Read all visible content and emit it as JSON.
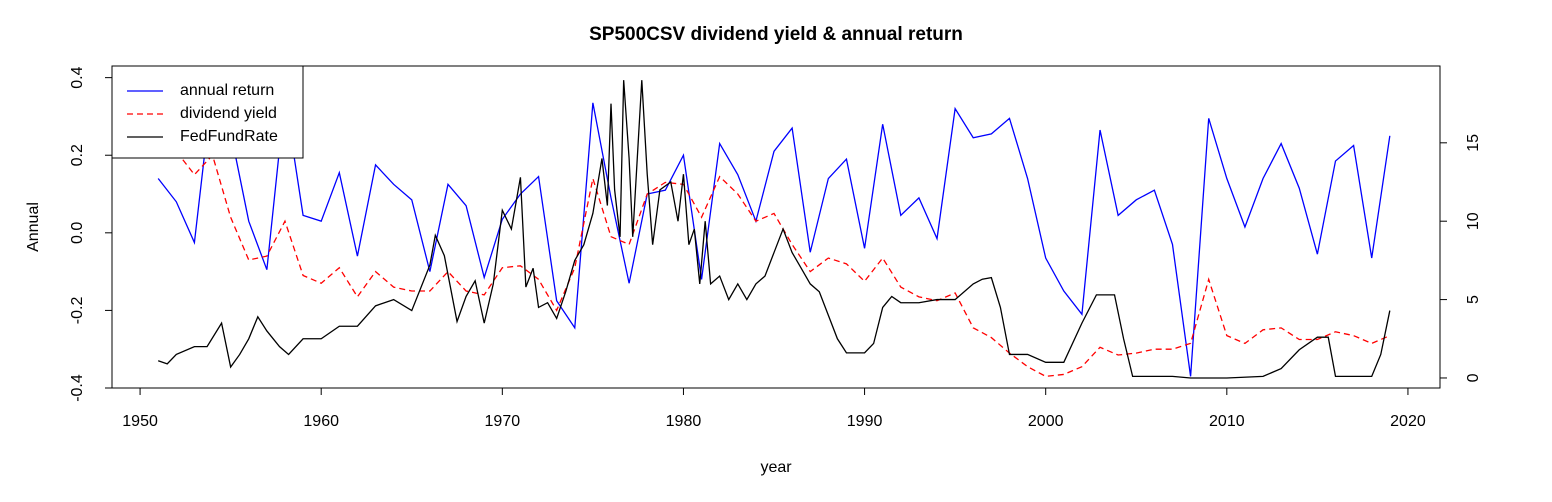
{
  "chart_data": {
    "type": "line",
    "title": "SP500CSV dividend yield & annual return",
    "xlabel": "year",
    "ylabel": "Annual",
    "xlim": [
      1948.45,
      2021.77
    ],
    "xticks": [
      1950,
      1960,
      1970,
      1980,
      1990,
      2000,
      2010,
      2020
    ],
    "ylim": [
      -0.4,
      0.43
    ],
    "yticks": [
      -0.4,
      -0.2,
      {
        "value": 0,
        "label": "0.0"
      },
      0.2,
      0.4
    ],
    "y2lim": [
      -0.64,
      19.9
    ],
    "y2ticks": [
      0,
      5,
      10,
      15
    ],
    "legend": "topleft",
    "series": [
      {
        "name": "annual return",
        "color": "#0000ff",
        "linestyle": "solid",
        "axis": "y",
        "x": [
          1951,
          1952,
          1953,
          1954,
          1955,
          1956,
          1957,
          1958,
          1959,
          1960,
          1961,
          1962,
          1963,
          1964,
          1965,
          1966,
          1967,
          1968,
          1969,
          1970,
          1971,
          1972,
          1973,
          1974,
          1975,
          1976,
          1977,
          1978,
          1979,
          1980,
          1981,
          1982,
          1983,
          1984,
          1985,
          1986,
          1987,
          1988,
          1989,
          1990,
          1991,
          1992,
          1993,
          1994,
          1995,
          1996,
          1997,
          1998,
          1999,
          2000,
          2001,
          2002,
          2003,
          2004,
          2005,
          2006,
          2007,
          2008,
          2009,
          2010,
          2011,
          2012,
          2013,
          2014,
          2015,
          2016,
          2017,
          2018,
          2019
        ],
        "values": [
          0.14,
          0.08,
          -0.025,
          0.38,
          0.26,
          0.03,
          -0.095,
          0.35,
          0.045,
          0.03,
          0.155,
          -0.06,
          0.175,
          0.125,
          0.085,
          -0.1,
          0.125,
          0.07,
          -0.115,
          0.035,
          0.1,
          0.145,
          -0.175,
          -0.245,
          0.335,
          0.09,
          -0.13,
          0.1,
          0.11,
          0.2,
          -0.12,
          0.23,
          0.15,
          0.03,
          0.21,
          0.27,
          -0.05,
          0.14,
          0.19,
          -0.04,
          0.28,
          0.045,
          0.09,
          -0.015,
          0.32,
          0.245,
          0.255,
          0.295,
          0.14,
          -0.065,
          -0.15,
          -0.21,
          0.265,
          0.045,
          0.085,
          0.11,
          -0.03,
          -0.37,
          0.295,
          0.14,
          0.015,
          0.14,
          0.23,
          0.115,
          -0.055,
          0.185,
          0.225,
          -0.065,
          0.25
        ]
      },
      {
        "name": "dividend yield",
        "color": "#ff0000",
        "linestyle": "dashed",
        "axis": "y",
        "x": [
          1951,
          1952,
          1953,
          1954,
          1955,
          1956,
          1957,
          1958,
          1959,
          1960,
          1961,
          1962,
          1963,
          1964,
          1965,
          1966,
          1967,
          1968,
          1969,
          1970,
          1971,
          1972,
          1973,
          1974,
          1975,
          1976,
          1977,
          1978,
          1979,
          1980,
          1981,
          1982,
          1983,
          1984,
          1985,
          1986,
          1987,
          1988,
          1989,
          1990,
          1991,
          1992,
          1993,
          1994,
          1995,
          1996,
          1997,
          1998,
          1999,
          2000,
          2001,
          2002,
          2003,
          2004,
          2005,
          2006,
          2007,
          2008,
          2009,
          2010,
          2011,
          2012,
          2013,
          2014,
          2015,
          2016,
          2017,
          2018,
          2019
        ],
        "values": [
          0.3,
          0.21,
          0.15,
          0.2,
          0.04,
          -0.07,
          -0.06,
          0.03,
          -0.11,
          -0.13,
          -0.09,
          -0.165,
          -0.1,
          -0.14,
          -0.15,
          -0.15,
          -0.1,
          -0.15,
          -0.16,
          -0.09,
          -0.085,
          -0.12,
          -0.2,
          -0.09,
          0.14,
          -0.01,
          -0.03,
          0.1,
          0.13,
          0.125,
          0.04,
          0.145,
          0.1,
          0.03,
          0.05,
          -0.03,
          -0.1,
          -0.065,
          -0.08,
          -0.125,
          -0.065,
          -0.14,
          -0.165,
          -0.175,
          -0.155,
          -0.245,
          -0.27,
          -0.31,
          -0.345,
          -0.37,
          -0.365,
          -0.345,
          -0.295,
          -0.315,
          -0.31,
          -0.3,
          -0.3,
          -0.285,
          -0.12,
          -0.265,
          -0.285,
          -0.25,
          -0.245,
          -0.275,
          -0.275,
          -0.255,
          -0.265,
          -0.285,
          -0.265
        ]
      },
      {
        "name": "FedFundRate",
        "color": "#000000",
        "linestyle": "solid",
        "axis": "y2",
        "x": [
          1951,
          1951.5,
          1952,
          1953,
          1953.7,
          1954.5,
          1955,
          1955.5,
          1956,
          1956.5,
          1957,
          1957.7,
          1958.2,
          1959,
          1960,
          1961,
          1962,
          1963,
          1964,
          1965,
          1966,
          1966.3,
          1966.8,
          1967.5,
          1968,
          1968.5,
          1969,
          1969.5,
          1970,
          1970.5,
          1971,
          1971.3,
          1971.7,
          1972,
          1972.5,
          1973,
          1973.5,
          1974,
          1974.5,
          1975,
          1975.5,
          1975.8,
          1976,
          1976.2,
          1976.5,
          1976.7,
          1977,
          1977.2,
          1977.7,
          1978,
          1978.3,
          1978.7,
          1979.3,
          1979.7,
          1980,
          1980.3,
          1980.6,
          1980.9,
          1981.2,
          1981.5,
          1982,
          1982.5,
          1983,
          1983.5,
          1984,
          1984.5,
          1985,
          1985.5,
          1986,
          1986.5,
          1987,
          1987.5,
          1988,
          1988.5,
          1989,
          1990,
          1990.5,
          1991,
          1991.5,
          1992,
          1993,
          1994,
          1995,
          1996,
          1996.5,
          1997,
          1997.5,
          1998,
          1999,
          2000,
          2001,
          2002,
          2002.8,
          2003.8,
          2004.3,
          2004.8,
          2007,
          2008,
          2010,
          2012,
          2013,
          2014,
          2015,
          2015.6,
          2016,
          2018,
          2018.5,
          2019
        ],
        "values": [
          1.1,
          0.9,
          1.5,
          2.0,
          2.0,
          3.5,
          0.7,
          1.5,
          2.5,
          3.9,
          3.0,
          2.0,
          1.5,
          2.5,
          2.5,
          3.3,
          3.3,
          4.6,
          5,
          4.3,
          7.2,
          9.1,
          7.8,
          3.6,
          5.2,
          6.2,
          3.5,
          6.0,
          10.7,
          9.5,
          12.8,
          5.8,
          7,
          4.5,
          4.8,
          3.8,
          5.5,
          7.5,
          8.5,
          10.5,
          14,
          11,
          17.5,
          12,
          9,
          19,
          14,
          9,
          19,
          13,
          8.5,
          12,
          12.5,
          10,
          13,
          8.5,
          9.5,
          6,
          10,
          6,
          6.5,
          5,
          6,
          5,
          6,
          6.5,
          8,
          9.5,
          8,
          7,
          6,
          5.5,
          4,
          2.5,
          1.6,
          1.6,
          2.2,
          4.5,
          5.2,
          4.8,
          4.8,
          5,
          5,
          6,
          6.3,
          6.4,
          4.5,
          1.5,
          1.5,
          1.0,
          1.0,
          3.5,
          5.3,
          5.3,
          2.5,
          0.1,
          0.1,
          0.0,
          0.0,
          0.1,
          0.6,
          1.8,
          2.6,
          2.6,
          0.1,
          0.1,
          1.5,
          4.3
        ]
      }
    ]
  }
}
